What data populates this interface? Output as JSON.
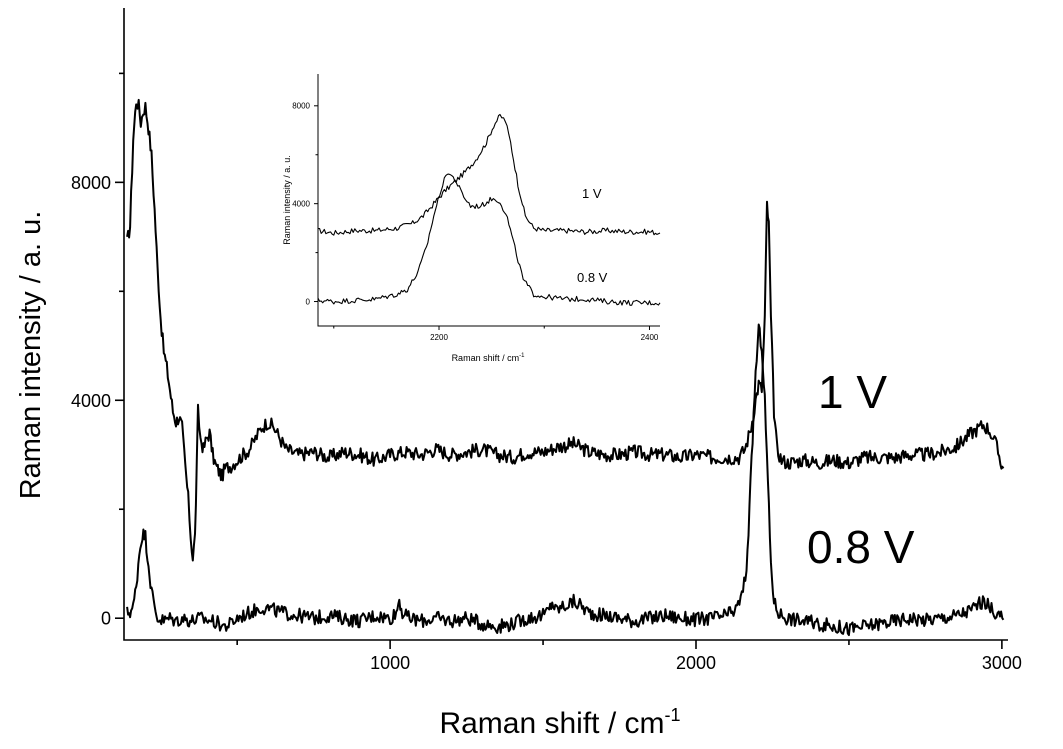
{
  "chart_data": [
    {
      "type": "line",
      "xlabel_main": "Raman shift / cm",
      "xlabel_sup": "-1",
      "ylabel": "Raman intensity / a. u.",
      "xlim": [
        130,
        3020
      ],
      "ylim": [
        -400,
        11200
      ],
      "xticks": [
        1000,
        2000,
        3000
      ],
      "yticks": [
        0,
        4000,
        8000
      ],
      "xticks_minor": [
        500,
        1500,
        2500
      ],
      "yticks_minor": [
        2000,
        6000,
        10000
      ],
      "series": [
        {
          "name": "1 V",
          "points": [
            [
              140,
              6900
            ],
            [
              150,
              7200
            ],
            [
              160,
              8800
            ],
            [
              170,
              9500
            ],
            [
              178,
              9400
            ],
            [
              185,
              9100
            ],
            [
              193,
              9300
            ],
            [
              200,
              9400
            ],
            [
              210,
              9000
            ],
            [
              220,
              8500
            ],
            [
              230,
              7500
            ],
            [
              240,
              6400
            ],
            [
              250,
              5500
            ],
            [
              260,
              4900
            ],
            [
              270,
              4600
            ],
            [
              280,
              4200
            ],
            [
              290,
              3800
            ],
            [
              300,
              3600
            ],
            [
              310,
              3700
            ],
            [
              320,
              3500
            ],
            [
              330,
              2800
            ],
            [
              340,
              2200
            ],
            [
              348,
              1500
            ],
            [
              355,
              1100
            ],
            [
              362,
              1500
            ],
            [
              368,
              2800
            ],
            [
              372,
              3800
            ],
            [
              380,
              3300
            ],
            [
              390,
              3100
            ],
            [
              400,
              3300
            ],
            [
              410,
              3400
            ],
            [
              420,
              3000
            ],
            [
              430,
              2800
            ],
            [
              440,
              2700
            ],
            [
              450,
              2600
            ],
            [
              460,
              2750
            ],
            [
              480,
              2800
            ],
            [
              500,
              2900
            ],
            [
              520,
              3000
            ],
            [
              540,
              3100
            ],
            [
              560,
              3300
            ],
            [
              580,
              3500
            ],
            [
              600,
              3600
            ],
            [
              620,
              3500
            ],
            [
              640,
              3300
            ],
            [
              660,
              3100
            ],
            [
              700,
              3000
            ],
            [
              750,
              3050
            ],
            [
              800,
              2950
            ],
            [
              850,
              3050
            ],
            [
              900,
              3000
            ],
            [
              950,
              2900
            ],
            [
              1000,
              3000
            ],
            [
              1050,
              3050
            ],
            [
              1100,
              3000
            ],
            [
              1150,
              3100
            ],
            [
              1200,
              3000
            ],
            [
              1250,
              3050
            ],
            [
              1300,
              3100
            ],
            [
              1350,
              3000
            ],
            [
              1400,
              2950
            ],
            [
              1450,
              3050
            ],
            [
              1500,
              3050
            ],
            [
              1550,
              3150
            ],
            [
              1600,
              3200
            ],
            [
              1650,
              3050
            ],
            [
              1700,
              3000
            ],
            [
              1750,
              3000
            ],
            [
              1800,
              3050
            ],
            [
              1850,
              3000
            ],
            [
              1900,
              3000
            ],
            [
              1950,
              2950
            ],
            [
              2000,
              3000
            ],
            [
              2050,
              2950
            ],
            [
              2100,
              2950
            ],
            [
              2140,
              2950
            ],
            [
              2160,
              3100
            ],
            [
              2180,
              3500
            ],
            [
              2195,
              4000
            ],
            [
              2205,
              4300
            ],
            [
              2215,
              4200
            ],
            [
              2225,
              5500
            ],
            [
              2232,
              7600
            ],
            [
              2238,
              7200
            ],
            [
              2245,
              5500
            ],
            [
              2255,
              3800
            ],
            [
              2265,
              3100
            ],
            [
              2280,
              2900
            ],
            [
              2300,
              2850
            ],
            [
              2350,
              2900
            ],
            [
              2400,
              2850
            ],
            [
              2450,
              2900
            ],
            [
              2500,
              2850
            ],
            [
              2550,
              2950
            ],
            [
              2600,
              2950
            ],
            [
              2650,
              2950
            ],
            [
              2700,
              3000
            ],
            [
              2750,
              3000
            ],
            [
              2800,
              3050
            ],
            [
              2850,
              3150
            ],
            [
              2900,
              3400
            ],
            [
              2940,
              3550
            ],
            [
              2960,
              3450
            ],
            [
              2980,
              3200
            ],
            [
              2995,
              2900
            ],
            [
              3005,
              2750
            ]
          ],
          "label": "1 V"
        },
        {
          "name": "0.8 V",
          "points": [
            [
              140,
              100
            ],
            [
              150,
              120
            ],
            [
              160,
              200
            ],
            [
              170,
              600
            ],
            [
              180,
              1200
            ],
            [
              190,
              1550
            ],
            [
              200,
              1500
            ],
            [
              210,
              1000
            ],
            [
              220,
              500
            ],
            [
              230,
              200
            ],
            [
              240,
              0
            ],
            [
              260,
              -50
            ],
            [
              280,
              0
            ],
            [
              300,
              -50
            ],
            [
              320,
              0
            ],
            [
              350,
              -50
            ],
            [
              380,
              0
            ],
            [
              400,
              -30
            ],
            [
              420,
              -50
            ],
            [
              440,
              -100
            ],
            [
              460,
              -150
            ],
            [
              480,
              -100
            ],
            [
              500,
              0
            ],
            [
              520,
              50
            ],
            [
              540,
              100
            ],
            [
              560,
              150
            ],
            [
              580,
              200
            ],
            [
              600,
              180
            ],
            [
              620,
              150
            ],
            [
              650,
              100
            ],
            [
              700,
              50
            ],
            [
              750,
              0
            ],
            [
              800,
              50
            ],
            [
              850,
              0
            ],
            [
              900,
              -50
            ],
            [
              950,
              50
            ],
            [
              1000,
              0
            ],
            [
              1020,
              100
            ],
            [
              1030,
              350
            ],
            [
              1040,
              100
            ],
            [
              1060,
              0
            ],
            [
              1100,
              -50
            ],
            [
              1150,
              0
            ],
            [
              1200,
              -50
            ],
            [
              1250,
              0
            ],
            [
              1300,
              -100
            ],
            [
              1350,
              -150
            ],
            [
              1400,
              -100
            ],
            [
              1450,
              0
            ],
            [
              1500,
              50
            ],
            [
              1520,
              150
            ],
            [
              1530,
              300
            ],
            [
              1540,
              150
            ],
            [
              1560,
              200
            ],
            [
              1580,
              250
            ],
            [
              1600,
              300
            ],
            [
              1620,
              250
            ],
            [
              1650,
              100
            ],
            [
              1700,
              50
            ],
            [
              1750,
              0
            ],
            [
              1800,
              -50
            ],
            [
              1850,
              0
            ],
            [
              1900,
              50
            ],
            [
              1950,
              0
            ],
            [
              2000,
              -30
            ],
            [
              2050,
              0
            ],
            [
              2100,
              50
            ],
            [
              2130,
              150
            ],
            [
              2150,
              400
            ],
            [
              2165,
              900
            ],
            [
              2175,
              2000
            ],
            [
              2185,
              3300
            ],
            [
              2195,
              4500
            ],
            [
              2205,
              5300
            ],
            [
              2215,
              5000
            ],
            [
              2225,
              4000
            ],
            [
              2235,
              2500
            ],
            [
              2245,
              1000
            ],
            [
              2255,
              300
            ],
            [
              2270,
              100
            ],
            [
              2300,
              0
            ],
            [
              2350,
              -50
            ],
            [
              2400,
              -100
            ],
            [
              2450,
              -150
            ],
            [
              2500,
              -200
            ],
            [
              2550,
              -150
            ],
            [
              2600,
              -100
            ],
            [
              2650,
              -50
            ],
            [
              2700,
              0
            ],
            [
              2750,
              -30
            ],
            [
              2800,
              0
            ],
            [
              2850,
              50
            ],
            [
              2900,
              150
            ],
            [
              2930,
              300
            ],
            [
              2950,
              250
            ],
            [
              2970,
              150
            ],
            [
              2990,
              50
            ],
            [
              3005,
              -30
            ]
          ],
          "label": "0.8 V"
        }
      ]
    },
    {
      "type": "line",
      "xlabel_main": "Raman shift / cm",
      "xlabel_sup": "-1",
      "ylabel": "Raman intensity / a. u.",
      "xlim": [
        2085,
        2410
      ],
      "ylim": [
        -1000,
        9300
      ],
      "xticks": [
        2200,
        2400
      ],
      "yticks": [
        0,
        4000,
        8000
      ],
      "xticks_minor": [
        2100,
        2300
      ],
      "yticks_minor": [
        2000,
        6000
      ],
      "series": [
        {
          "name": "1 V",
          "points": [
            [
              2085,
              2900
            ],
            [
              2100,
              2800
            ],
            [
              2120,
              2900
            ],
            [
              2140,
              2900
            ],
            [
              2160,
              3000
            ],
            [
              2175,
              3200
            ],
            [
              2185,
              3500
            ],
            [
              2195,
              4000
            ],
            [
              2205,
              4500
            ],
            [
              2215,
              4900
            ],
            [
              2225,
              5300
            ],
            [
              2235,
              5800
            ],
            [
              2245,
              6500
            ],
            [
              2252,
              7200
            ],
            [
              2258,
              7600
            ],
            [
              2263,
              7400
            ],
            [
              2268,
              6500
            ],
            [
              2275,
              4800
            ],
            [
              2282,
              3500
            ],
            [
              2290,
              3000
            ],
            [
              2300,
              2900
            ],
            [
              2320,
              2900
            ],
            [
              2340,
              2850
            ],
            [
              2360,
              2900
            ],
            [
              2380,
              2850
            ],
            [
              2400,
              2850
            ],
            [
              2410,
              2800
            ]
          ],
          "label": "1 V"
        },
        {
          "name": "0.8 V",
          "points": [
            [
              2085,
              50
            ],
            [
              2100,
              0
            ],
            [
              2120,
              50
            ],
            [
              2140,
              100
            ],
            [
              2160,
              300
            ],
            [
              2170,
              500
            ],
            [
              2180,
              1200
            ],
            [
              2188,
              2200
            ],
            [
              2195,
              3500
            ],
            [
              2202,
              4600
            ],
            [
              2208,
              5300
            ],
            [
              2215,
              5000
            ],
            [
              2222,
              4400
            ],
            [
              2230,
              3900
            ],
            [
              2240,
              3900
            ],
            [
              2250,
              4200
            ],
            [
              2258,
              4100
            ],
            [
              2265,
              3400
            ],
            [
              2272,
              2200
            ],
            [
              2280,
              900
            ],
            [
              2290,
              300
            ],
            [
              2300,
              200
            ],
            [
              2320,
              100
            ],
            [
              2340,
              100
            ],
            [
              2360,
              0
            ],
            [
              2380,
              -50
            ],
            [
              2400,
              -50
            ],
            [
              2410,
              -50
            ]
          ],
          "label": "0.8 V"
        }
      ]
    }
  ]
}
